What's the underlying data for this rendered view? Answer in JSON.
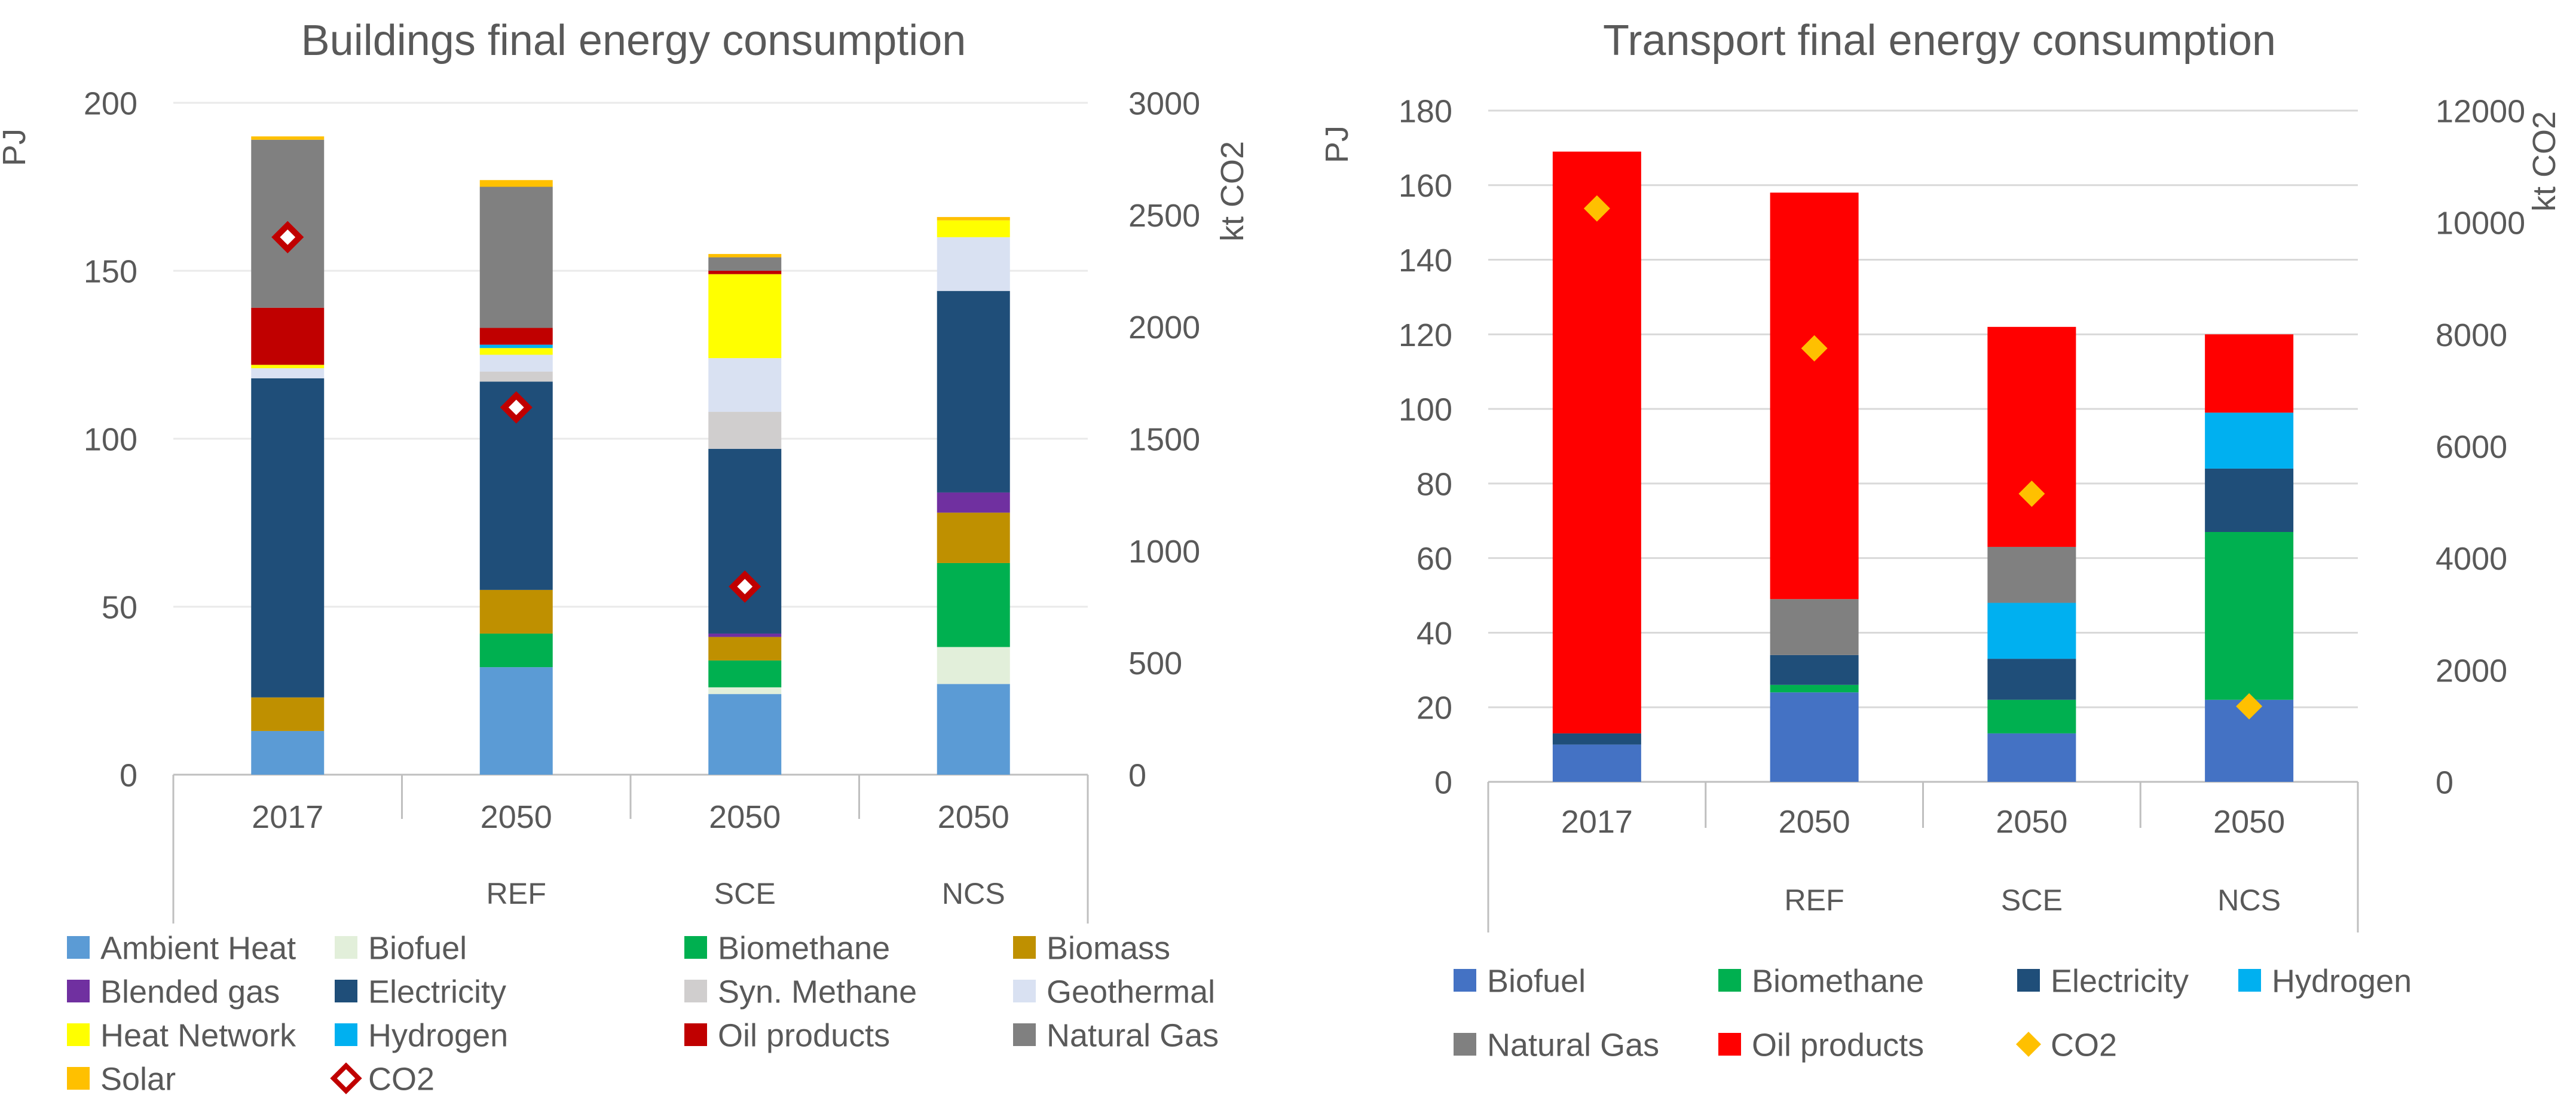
{
  "chart_data": [
    {
      "type": "bar",
      "stacked": true,
      "title": "Buildings final energy consumption",
      "ylabel": "PJ",
      "y2label": "kt CO2",
      "ylim": [
        0,
        200
      ],
      "yticks": [
        0,
        50,
        100,
        150,
        200
      ],
      "y2lim": [
        0,
        3000
      ],
      "y2ticks": [
        0,
        500,
        1000,
        1500,
        2000,
        2500,
        3000
      ],
      "categories": [
        "2017",
        "2050",
        "2050",
        "2050"
      ],
      "subcategories": [
        "",
        "REF",
        "SCE",
        "NCS"
      ],
      "grid": true,
      "legend_position": "bottom",
      "series": [
        {
          "name": "Ambient Heat",
          "color": "#5B9BD5",
          "values": [
            13,
            32,
            24,
            27
          ]
        },
        {
          "name": "Biofuel",
          "color": "#E2EFDA",
          "values": [
            0,
            0,
            2,
            11
          ]
        },
        {
          "name": "Biomethane",
          "color": "#00B050",
          "values": [
            0,
            10,
            8,
            25
          ]
        },
        {
          "name": "Biomass",
          "color": "#BF9000",
          "values": [
            10,
            13,
            7,
            15
          ]
        },
        {
          "name": "Blended gas",
          "color": "#7030A0",
          "values": [
            0,
            0,
            1,
            6
          ]
        },
        {
          "name": "Electricity",
          "color": "#1F4E79",
          "values": [
            95,
            62,
            55,
            60
          ]
        },
        {
          "name": "Syn. Methane",
          "color": "#D0CECE",
          "values": [
            0,
            3,
            11,
            0
          ]
        },
        {
          "name": "Geothermal",
          "color": "#D9E1F2",
          "values": [
            3,
            5,
            16,
            16
          ]
        },
        {
          "name": "Heat Network",
          "color": "#FFFF00",
          "values": [
            1,
            2,
            25,
            5
          ]
        },
        {
          "name": "Hydrogen",
          "color": "#00B0F0",
          "values": [
            0,
            1,
            0,
            0
          ]
        },
        {
          "name": "Oil products",
          "color": "#C00000",
          "values": [
            17,
            5,
            1,
            0
          ]
        },
        {
          "name": "Natural Gas",
          "color": "#808080",
          "values": [
            50,
            42,
            4,
            0
          ]
        },
        {
          "name": "Solar",
          "color": "#FFC000",
          "values": [
            1,
            2,
            1,
            1
          ]
        }
      ],
      "co2": {
        "name": "CO2",
        "color": "#C00000",
        "marker": "diamond-outline",
        "values": [
          2400,
          1640,
          840,
          null
        ]
      }
    },
    {
      "type": "bar",
      "stacked": true,
      "title": "Transport final energy consumption",
      "ylabel": "PJ",
      "y2label": "kt CO2",
      "ylim": [
        0,
        180
      ],
      "yticks": [
        0,
        20,
        40,
        60,
        80,
        100,
        120,
        140,
        160,
        180
      ],
      "y2lim": [
        0,
        12000
      ],
      "y2ticks": [
        0,
        2000,
        4000,
        6000,
        8000,
        10000,
        12000
      ],
      "categories": [
        "2017",
        "2050",
        "2050",
        "2050"
      ],
      "subcategories": [
        "",
        "REF",
        "SCE",
        "NCS"
      ],
      "grid": true,
      "legend_position": "bottom",
      "series": [
        {
          "name": "Biofuel",
          "color": "#4472C4",
          "values": [
            10,
            24,
            13,
            22
          ]
        },
        {
          "name": "Biomethane",
          "color": "#00B050",
          "values": [
            0,
            2,
            9,
            45
          ]
        },
        {
          "name": "Electricity",
          "color": "#1F4E79",
          "values": [
            3,
            8,
            11,
            17
          ]
        },
        {
          "name": "Hydrogen",
          "color": "#00B0F0",
          "values": [
            0,
            0,
            15,
            15
          ]
        },
        {
          "name": "Natural Gas",
          "color": "#808080",
          "values": [
            0,
            15,
            15,
            0
          ]
        },
        {
          "name": "Oil products",
          "color": "#FF0000",
          "values": [
            156,
            109,
            59,
            21
          ]
        }
      ],
      "co2": {
        "name": "CO2",
        "color": "#FFC000",
        "marker": "diamond-filled",
        "values": [
          10250,
          7750,
          5150,
          1350
        ]
      }
    }
  ]
}
